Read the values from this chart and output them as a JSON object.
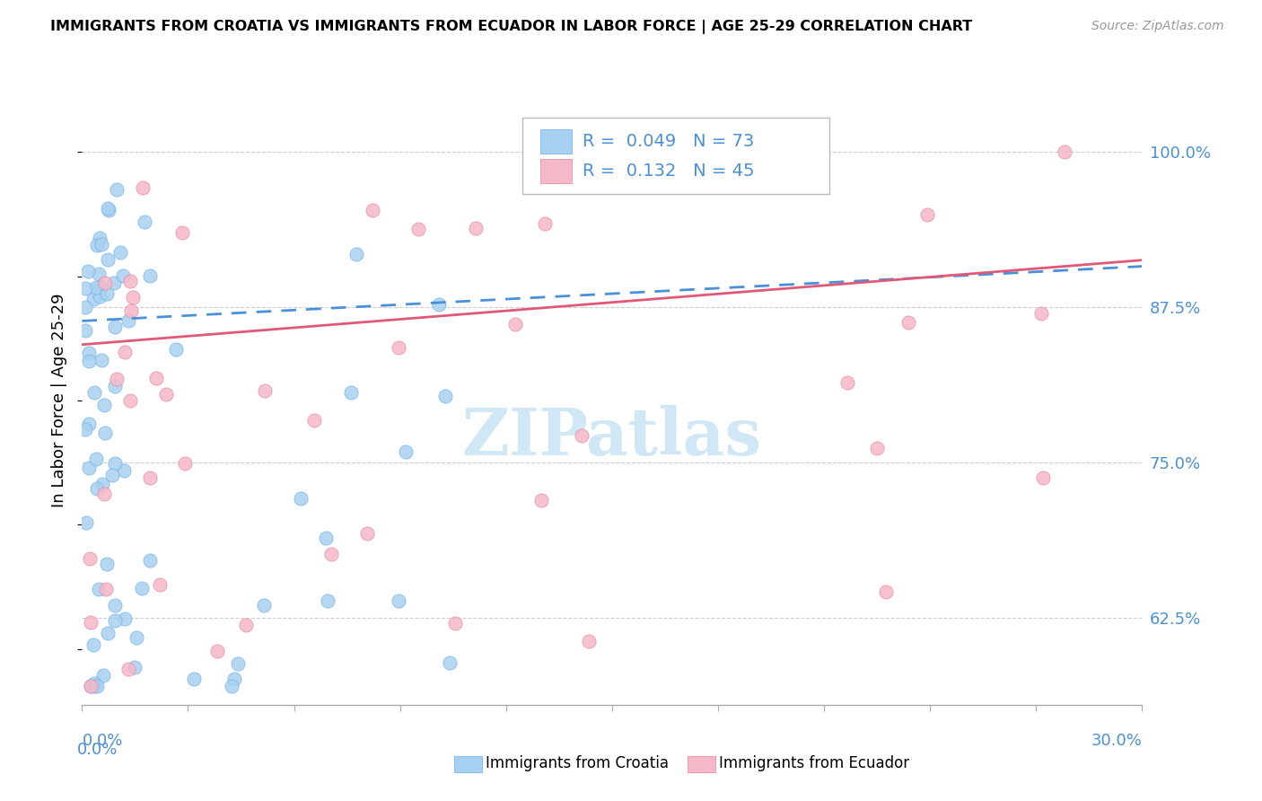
{
  "title": "IMMIGRANTS FROM CROATIA VS IMMIGRANTS FROM ECUADOR IN LABOR FORCE | AGE 25-29 CORRELATION CHART",
  "source": "Source: ZipAtlas.com",
  "ylabel_label": "In Labor Force | Age 25-29",
  "legend_croatia": "Immigrants from Croatia",
  "legend_ecuador": "Immigrants from Ecuador",
  "croatia_R": 0.049,
  "croatia_N": 73,
  "ecuador_R": 0.132,
  "ecuador_N": 45,
  "croatia_color": "#a8d0f0",
  "croatia_edge": "#6aaee8",
  "ecuador_color": "#f5b8c8",
  "ecuador_edge": "#e8829a",
  "trend_croatia_color": "#4a90d9",
  "trend_ecuador_color": "#e05878",
  "xlim_min": 0.0,
  "xlim_max": 0.3,
  "ylim_min": 0.555,
  "ylim_max": 1.045,
  "yticks": [
    0.625,
    0.75,
    0.875,
    1.0
  ],
  "ytick_labels": [
    "62.5%",
    "75.0%",
    "87.5%",
    "100.0%"
  ],
  "watermark": "ZIPatlas",
  "watermark_color": "#d0e8f5",
  "grid_color": "#cccccc",
  "axis_color": "#aaaaaa"
}
